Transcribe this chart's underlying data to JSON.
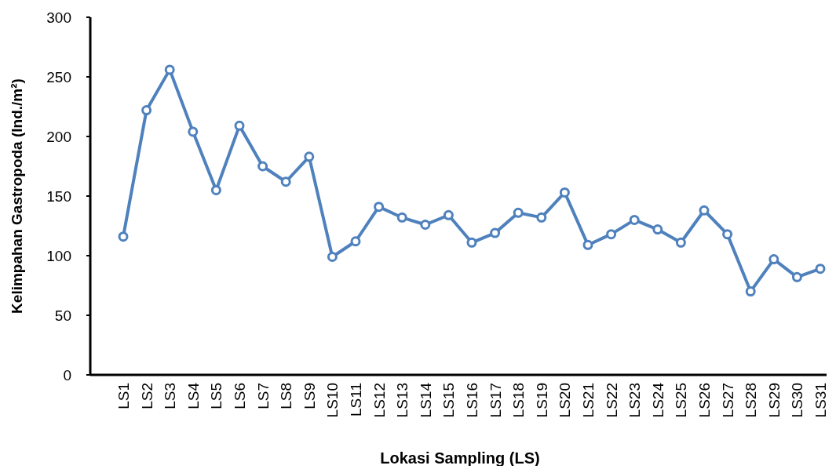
{
  "chart_data": {
    "type": "line",
    "xlabel": "Lokasi Sampling (LS)",
    "ylabel": "Kelimpahan Gastropoda (Ind./m²)",
    "categories": [
      "LS1",
      "LS2",
      "LS3",
      "LS4",
      "LS5",
      "LS6",
      "LS7",
      "LS8",
      "LS9",
      "LS10",
      "LS11",
      "LS12",
      "LS13",
      "LS14",
      "LS15",
      "LS16",
      "LS17",
      "LS18",
      "LS19",
      "LS20",
      "LS21",
      "LS22",
      "LS23",
      "LS24",
      "LS25",
      "LS26",
      "LS27",
      "LS28",
      "LS29",
      "LS30",
      "LS31"
    ],
    "series": [
      {
        "color": "#4f81bd",
        "values": [
          116,
          222,
          256,
          204,
          155,
          209,
          175,
          162,
          183,
          99,
          112,
          141,
          132,
          126,
          134,
          111,
          119,
          136,
          132,
          153,
          109,
          118,
          130,
          122,
          111,
          138,
          118,
          70,
          97,
          82,
          89
        ]
      }
    ],
    "ylim": [
      0,
      300
    ],
    "yticks": [
      0,
      50,
      100,
      150,
      200,
      250,
      300
    ],
    "grid": false,
    "marker": "circle",
    "line_style": "solid"
  }
}
